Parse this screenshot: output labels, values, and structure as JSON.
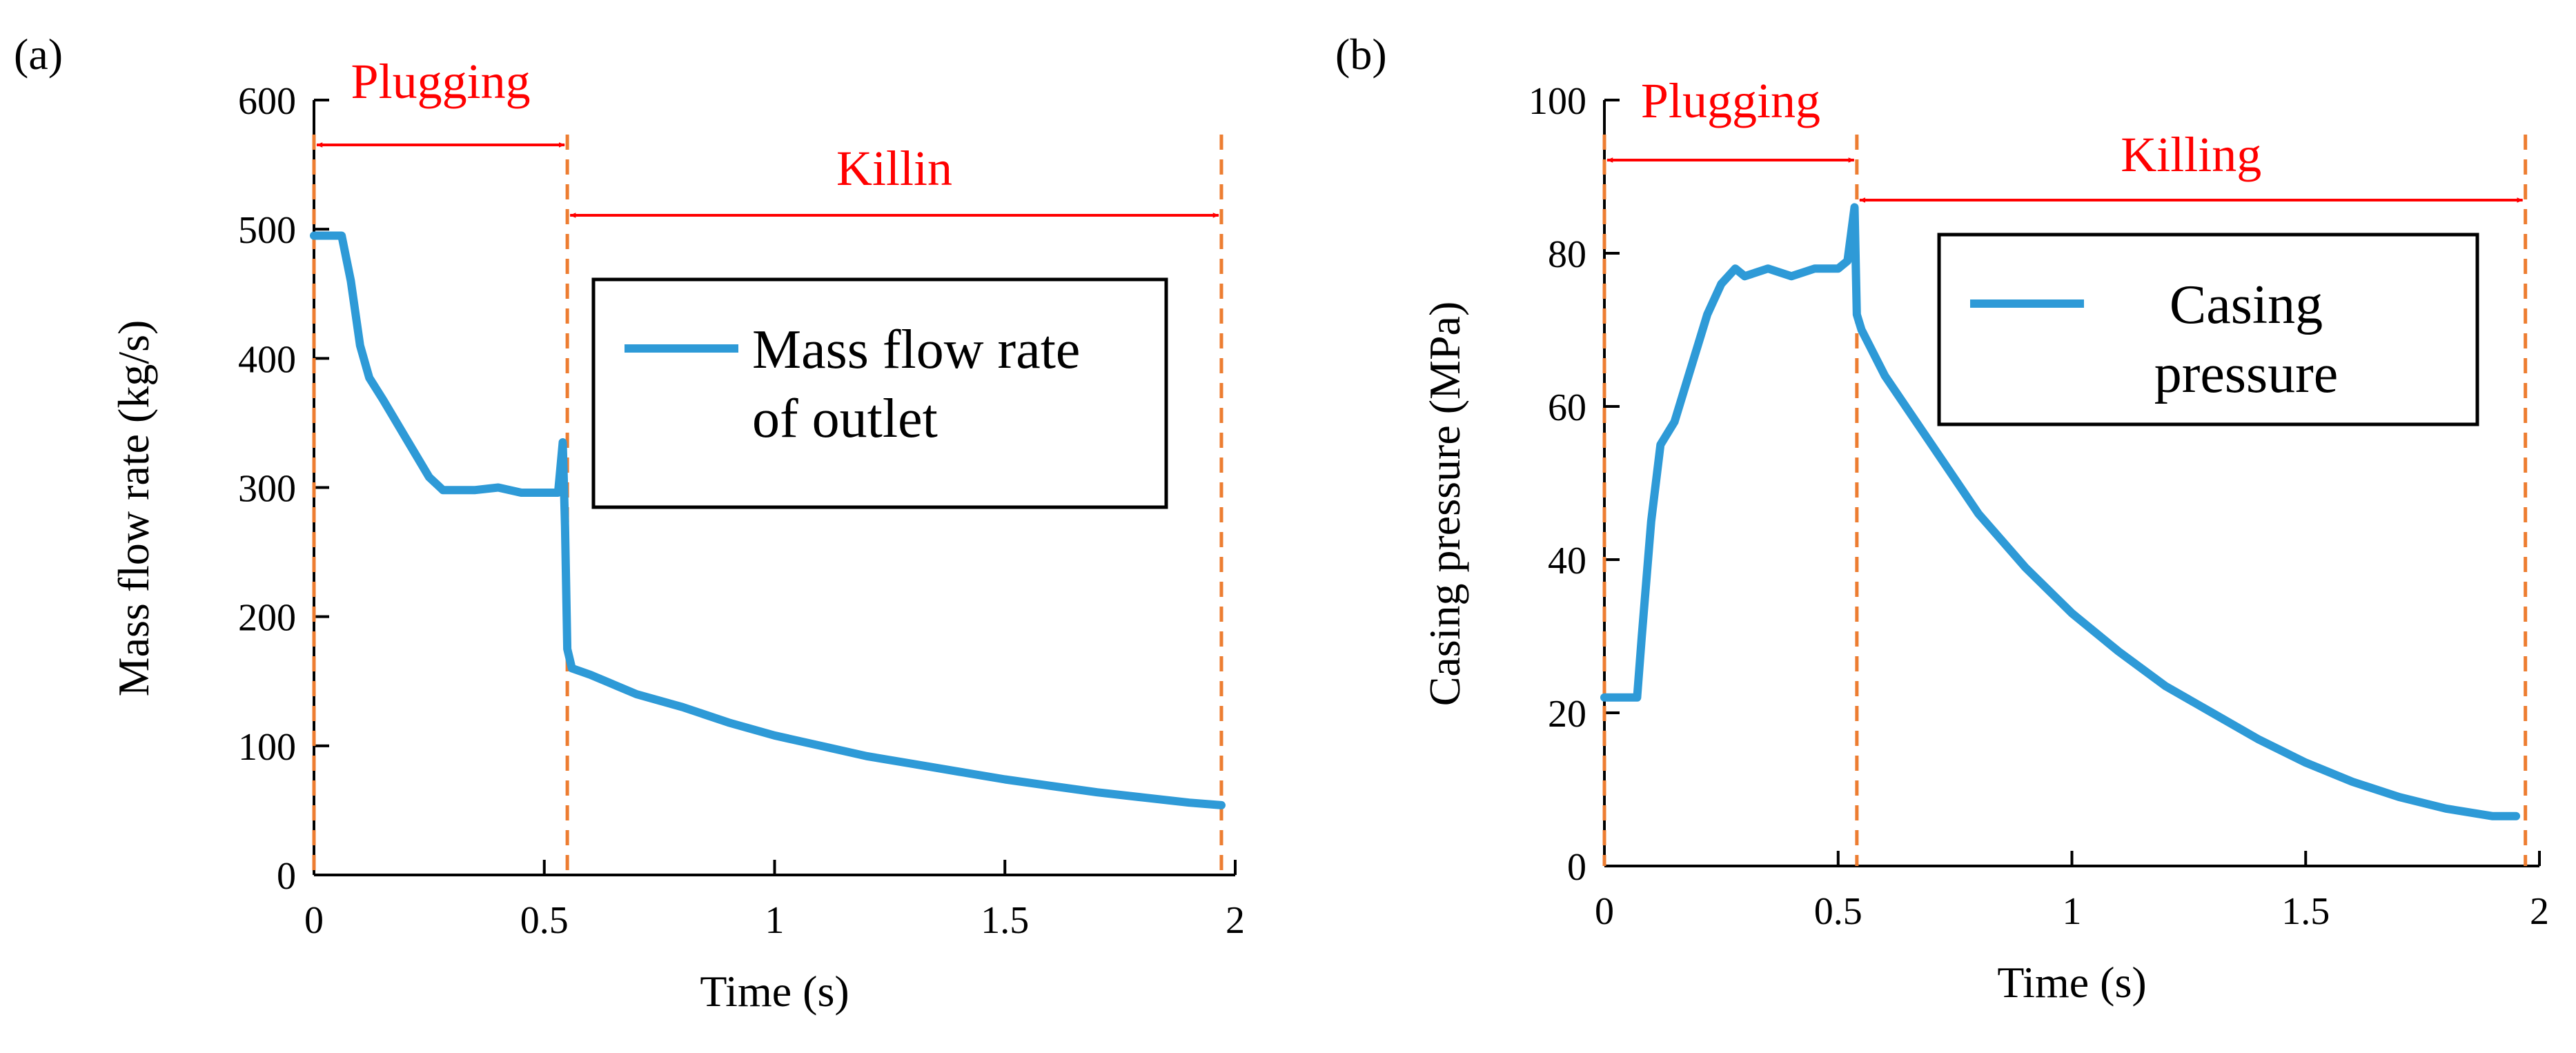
{
  "panels": [
    {
      "id": "a",
      "panel_label": "(a)",
      "phase_labels": {
        "plugging": "Plugging",
        "killing": "Killin"
      },
      "legend_lines": [
        "Mass flow rate",
        "of outlet"
      ],
      "chart_data": {
        "type": "line",
        "title": "",
        "xlabel": "Time (s)",
        "ylabel": "Mass flow rate (kg/s)",
        "xlim": [
          0,
          2
        ],
        "ylim": [
          0,
          600
        ],
        "xticks": [
          0,
          0.5,
          1,
          1.5,
          2
        ],
        "xtick_labels": [
          "0",
          "0.5",
          "1",
          "1.5",
          "2"
        ],
        "yticks": [
          0,
          100,
          200,
          300,
          400,
          500,
          600
        ],
        "ytick_labels": [
          "0",
          "100",
          "200",
          "300",
          "400",
          "500",
          "600"
        ],
        "grid": false,
        "legend": "upper-right",
        "phase_boundaries": [
          0,
          0.55,
          1.97
        ],
        "series": [
          {
            "name": "Mass flow rate of outlet",
            "color": "#2e9ad7",
            "x": [
              0,
              0.02,
              0.06,
              0.08,
              0.1,
              0.12,
              0.15,
              0.2,
              0.25,
              0.28,
              0.3,
              0.35,
              0.4,
              0.45,
              0.5,
              0.53,
              0.54,
              0.545,
              0.55,
              0.56,
              0.6,
              0.7,
              0.8,
              0.9,
              1.0,
              1.1,
              1.2,
              1.3,
              1.4,
              1.5,
              1.6,
              1.7,
              1.8,
              1.9,
              1.97
            ],
            "values": [
              495,
              495,
              495,
              460,
              410,
              385,
              368,
              338,
              308,
              298,
              298,
              298,
              300,
              296,
              296,
              296,
              335,
              270,
              175,
              160,
              155,
              140,
              130,
              118,
              108,
              100,
              92,
              86,
              80,
              74,
              69,
              64,
              60,
              56,
              54
            ]
          }
        ]
      }
    },
    {
      "id": "b",
      "panel_label": "(b)",
      "phase_labels": {
        "plugging": "Plugging",
        "killing": "Killing"
      },
      "legend_lines": [
        "Casing",
        "pressure"
      ],
      "chart_data": {
        "type": "line",
        "title": "",
        "xlabel": "Time (s)",
        "ylabel": "Casing pressure (MPa)",
        "xlim": [
          0,
          2
        ],
        "ylim": [
          0,
          100
        ],
        "xticks": [
          0,
          0.5,
          1,
          1.5,
          2
        ],
        "xtick_labels": [
          "0",
          "0.5",
          "1",
          "1.5",
          "2"
        ],
        "yticks": [
          0,
          20,
          40,
          60,
          80,
          100
        ],
        "ytick_labels": [
          "0",
          "20",
          "40",
          "60",
          "80",
          "100"
        ],
        "grid": false,
        "legend": "upper-right",
        "phase_boundaries": [
          0,
          0.54,
          1.97
        ],
        "series": [
          {
            "name": "Casing pressure",
            "color": "#2e9ad7",
            "x": [
              0,
              0.05,
              0.07,
              0.08,
              0.1,
              0.12,
              0.15,
              0.18,
              0.2,
              0.22,
              0.25,
              0.28,
              0.3,
              0.35,
              0.4,
              0.45,
              0.5,
              0.52,
              0.535,
              0.54,
              0.55,
              0.6,
              0.7,
              0.8,
              0.9,
              1.0,
              1.1,
              1.2,
              1.3,
              1.4,
              1.5,
              1.6,
              1.7,
              1.8,
              1.9,
              1.95
            ],
            "values": [
              22,
              22,
              22,
              30,
              45,
              55,
              58,
              64,
              68,
              72,
              76,
              78,
              77,
              78,
              77,
              78,
              78,
              79,
              86,
              72,
              70,
              64,
              55,
              46,
              39,
              33,
              28,
              23.5,
              20,
              16.5,
              13.5,
              11,
              9,
              7.5,
              6.5,
              6.5
            ]
          }
        ]
      }
    }
  ]
}
